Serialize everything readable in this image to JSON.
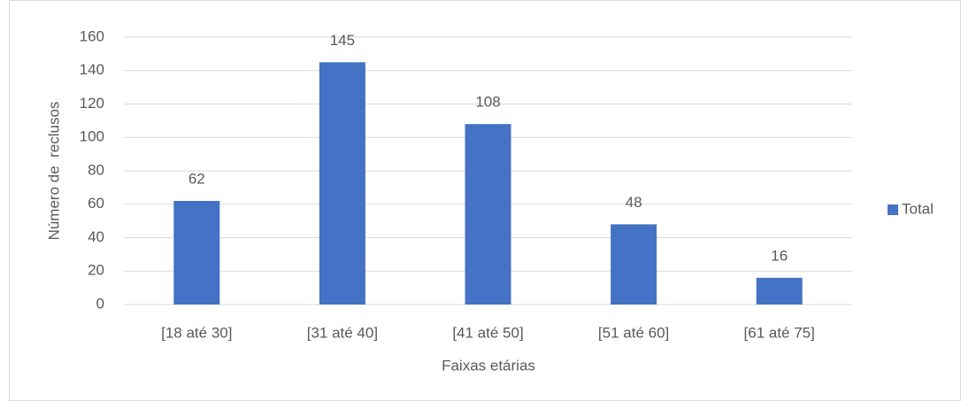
{
  "chart_data": {
    "type": "bar",
    "x_label": "Faixas etárias",
    "y_label": "Número de  reclusos",
    "categories": [
      "[18 até 30]",
      "[31 até 40]",
      "[41 até 50]",
      "[51 até 60]",
      "[61 até 75]"
    ],
    "series": [
      {
        "name": "Total",
        "color": "#4472c4",
        "values": [
          62,
          145,
          108,
          48,
          16
        ]
      }
    ],
    "ylim": [
      0,
      160
    ],
    "yticks": [
      0,
      20,
      40,
      60,
      80,
      100,
      120,
      140,
      160
    ],
    "grid": true,
    "legend": "right"
  }
}
